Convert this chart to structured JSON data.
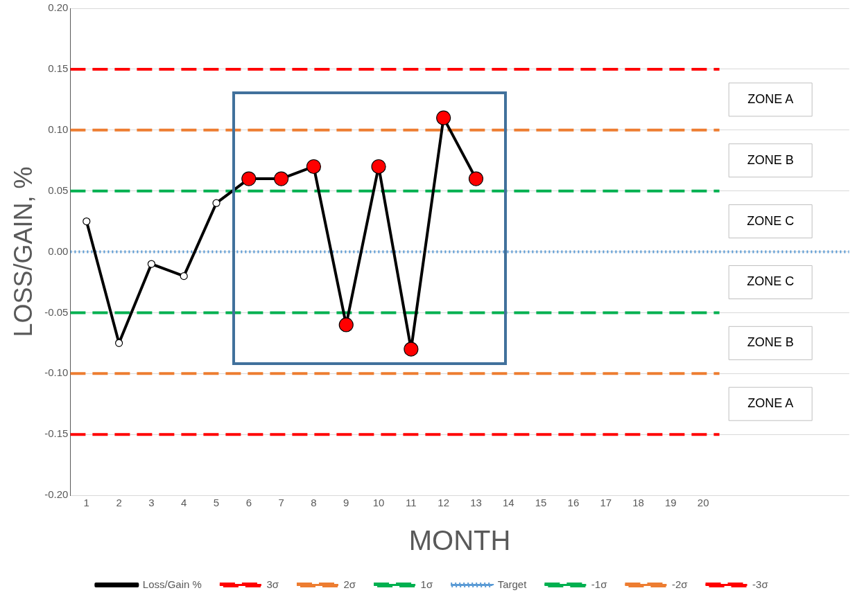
{
  "chart_data": {
    "type": "line",
    "xlabel": "MONTH",
    "ylabel": "LOSS/GAIN, %",
    "xlim": [
      0.5,
      24.5
    ],
    "xticks": [
      1,
      2,
      3,
      4,
      5,
      6,
      7,
      8,
      9,
      10,
      11,
      12,
      13,
      14,
      15,
      16,
      17,
      18,
      19,
      20
    ],
    "ylim": [
      -0.2,
      0.2
    ],
    "yticks": [
      {
        "value": -0.2,
        "label": "-0.20"
      },
      {
        "value": -0.15,
        "label": "-0.15"
      },
      {
        "value": -0.1,
        "label": "-0.10"
      },
      {
        "value": -0.05,
        "label": "-0.05"
      },
      {
        "value": 0,
        "label": "0.00"
      },
      {
        "value": 0.05,
        "label": "0.05"
      },
      {
        "value": 0.1,
        "label": "0.10"
      },
      {
        "value": 0.15,
        "label": "0.15"
      },
      {
        "value": 0.2,
        "label": "0.20"
      }
    ],
    "grid": "y",
    "legend": "bottom",
    "series": [
      {
        "name": "Loss/Gain %",
        "color": "#000000",
        "marker": "circle",
        "line_style": "solid",
        "x": [
          1,
          2,
          3,
          4,
          5,
          6,
          7,
          8,
          9,
          10,
          11,
          12,
          13
        ],
        "values": [
          0.025,
          -0.075,
          -0.01,
          -0.02,
          0.04,
          0.06,
          0.06,
          0.07,
          -0.06,
          0.07,
          -0.08,
          0.11,
          0.06
        ],
        "colors": [
          "#ffffff",
          "#ffffff",
          "#ffffff",
          "#ffffff",
          "#ffffff",
          "#ff0000",
          "#ff0000",
          "#ff0000",
          "#ff0000",
          "#ff0000",
          "#ff0000",
          "#ff0000",
          "#ff0000"
        ]
      },
      {
        "name": "3σ",
        "color": "#ff0000",
        "marker": "none",
        "line_style": "dashed",
        "x": [
          0.5,
          20.5
        ],
        "values": [
          0.15,
          0.15
        ]
      },
      {
        "name": "2σ",
        "color": "#ed7d31",
        "marker": "none",
        "line_style": "dashed",
        "x": [
          0.5,
          20.5
        ],
        "values": [
          0.1,
          0.1
        ]
      },
      {
        "name": "1σ",
        "color": "#00b050",
        "marker": "none",
        "line_style": "dashed",
        "x": [
          0.5,
          20.5
        ],
        "values": [
          0.05,
          0.05
        ]
      },
      {
        "name": "Target",
        "color": "#5b9bd5",
        "marker": "none",
        "line_style": "dotted",
        "x": [
          0.5,
          24.5
        ],
        "values": [
          0,
          0
        ]
      },
      {
        "name": "-1σ",
        "color": "#00b050",
        "marker": "none",
        "line_style": "dashed",
        "x": [
          0.5,
          20.5
        ],
        "values": [
          -0.05,
          -0.05
        ]
      },
      {
        "name": "-2σ",
        "color": "#ed7d31",
        "marker": "none",
        "line_style": "dashed",
        "x": [
          0.5,
          20.5
        ],
        "values": [
          -0.1,
          -0.1
        ]
      },
      {
        "name": "-3σ",
        "color": "#ff0000",
        "marker": "none",
        "line_style": "dashed",
        "x": [
          0.5,
          20.5
        ],
        "values": [
          -0.15,
          -0.15
        ]
      }
    ],
    "annotations": [
      "ZONE A",
      "ZONE B",
      "ZONE C",
      "ZONE C",
      "ZONE B",
      "ZONE A"
    ]
  }
}
